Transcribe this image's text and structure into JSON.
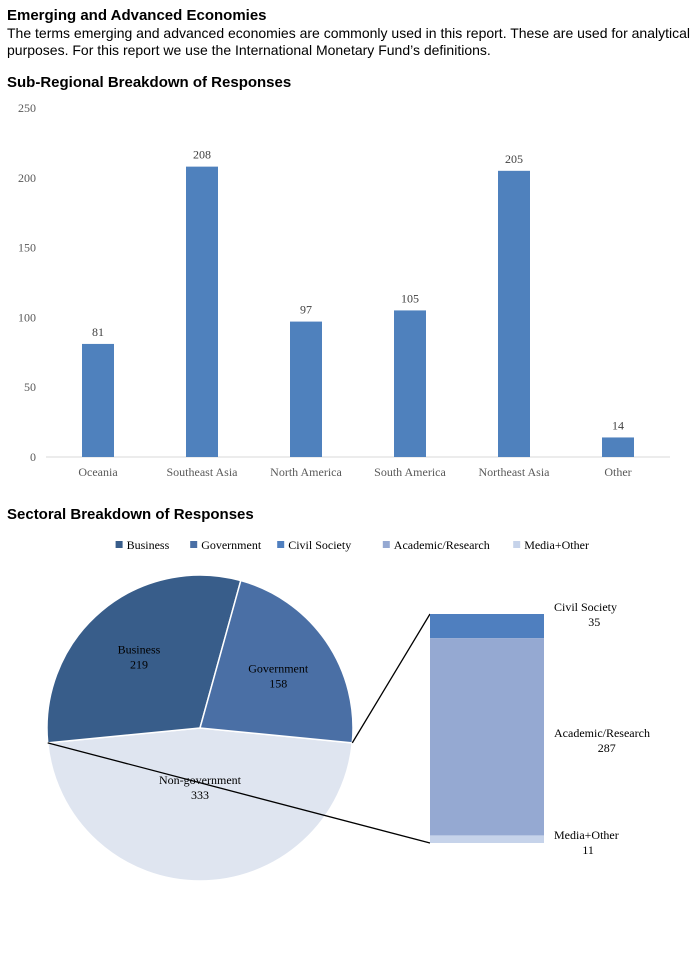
{
  "intro": {
    "heading": "Emerging and Advanced Economies",
    "body": "The terms emerging and advanced economies are commonly used in this report. These are used for analytical purposes. For this report we use the International Monetary Fund’s definitions."
  },
  "chart_data": [
    {
      "type": "bar",
      "title": "Sub-Regional Breakdown of Responses",
      "categories": [
        "Oceania",
        "Southeast Asia",
        "North America",
        "South America",
        "Northeast Asia",
        "Other"
      ],
      "values": [
        81,
        208,
        97,
        105,
        205,
        14
      ],
      "yticks": [
        "0",
        "50",
        "100",
        "150",
        "200",
        "250"
      ],
      "ylim": [
        0,
        250
      ],
      "color": "#4f81bd",
      "grid": false
    },
    {
      "type": "pie",
      "title": "Sectoral Breakdown of Responses",
      "legend": [
        "Business",
        "Government",
        "Civil Society",
        "Academic/Research",
        "Media+Other"
      ],
      "legend_colors": [
        "#385d8a",
        "#4a6fa5",
        "#4f7fbf",
        "#95a9d2",
        "#c6d3ea"
      ],
      "slices": [
        {
          "name": "Business",
          "value": 219,
          "color": "#385d8a"
        },
        {
          "name": "Government",
          "value": 158,
          "color": "#4a6fa5"
        },
        {
          "name": "Non-government",
          "value": 333,
          "color": "#dfe5f0"
        }
      ],
      "breakdown": [
        {
          "name": "Civil Society",
          "value": 35,
          "color": "#4f7fbf"
        },
        {
          "name": "Academic/Research",
          "value": 287,
          "color": "#95a9d2"
        },
        {
          "name": "Media+Other",
          "value": 11,
          "color": "#c6d3ea"
        }
      ]
    }
  ]
}
